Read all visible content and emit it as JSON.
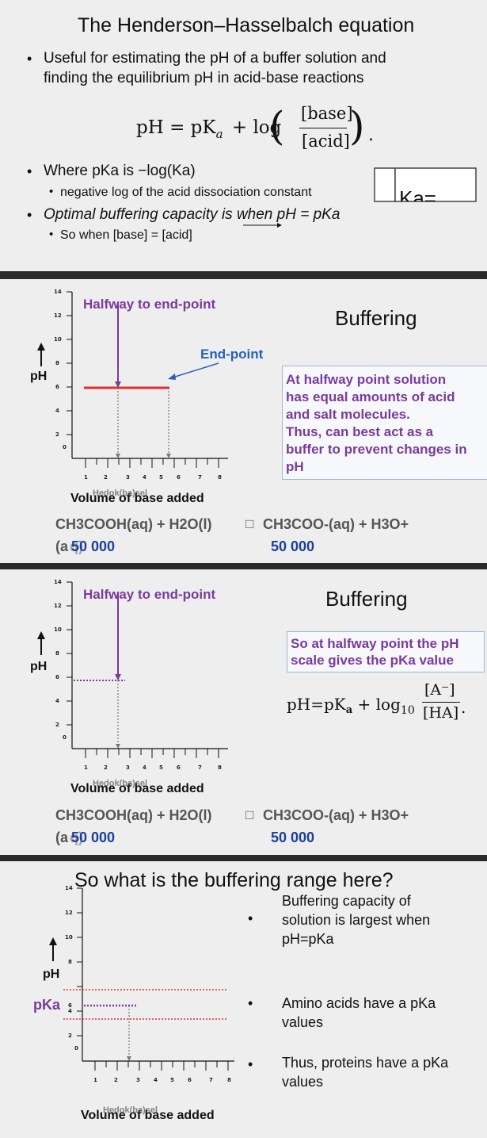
{
  "slide1": {
    "title": "The Henderson–Hasselbalch equation",
    "bullet1_line1": "Useful for estimating the pH of a buffer solution and",
    "bullet1_line2": "finding the equilibrium pH in acid-base reactions",
    "equation": {
      "lhs": "pH = pK",
      "sub": "a",
      "plus_log": "+ log",
      "numerator": "[base]",
      "denominator": "[acid]",
      "end": "."
    },
    "bullet2": "Where pKa is  −log(Ka)",
    "sub2": "negative log of the acid dissociation constant",
    "bullet3": "Optimal buffering capacity is when pH = pKa",
    "sub3": "So when [base] = [acid]",
    "corner_fragment": "Ka="
  },
  "slide2": {
    "title": "Buffering",
    "label_halfway": "Halfway to end-point",
    "label_endpoint": "End-point",
    "y_label": "pH",
    "y_ticks": [
      "14",
      "12",
      "10",
      "8",
      "6",
      "4",
      "2",
      "0"
    ],
    "x_ticks": [
      "1",
      "2",
      "3",
      "4",
      "5",
      "6",
      "7",
      "8"
    ],
    "x_label": "Volume of base added",
    "x_label_overlap": "Hedok(ba)sel",
    "box_text": [
      "At halfway point solution",
      "has equal amounts of acid",
      "and salt molecules.",
      "Thus, can best act as a",
      "buffer to prevent changes in",
      "pH"
    ],
    "reaction_left": "CH3COOH(aq) + H2O(l)",
    "reaction_glyph": "□",
    "reaction_right": "CH3COO-(aq) + H3O+",
    "under_left_prefix": "(a",
    "under_left_overlap": "q)",
    "under_left_value": "50 000",
    "under_right_value": "50 000"
  },
  "slide3": {
    "title": "Buffering",
    "label_halfway": "Halfway to end-point",
    "y_label": "pH",
    "y_ticks": [
      "14",
      "12",
      "10",
      "8",
      "6",
      "4",
      "2",
      "0"
    ],
    "x_ticks": [
      "1",
      "2",
      "3",
      "4",
      "5",
      "6",
      "7",
      "8"
    ],
    "x_label": "Volume of base added",
    "x_label_overlap": "Hedok(ba)sel",
    "box_text": [
      "So at halfway point the pH",
      "scale gives the pKa value"
    ],
    "equation": {
      "lhs": "pH=pK",
      "sub": "a",
      "log": "+ log",
      "log_sub": "10",
      "numerator": "[A⁻]",
      "denominator": "[HA]",
      "end": "."
    },
    "reaction_left": "CH3COOH(aq) + H2O(l)",
    "reaction_glyph": "□",
    "reaction_right": "CH3COO-(aq) + H3O+",
    "under_left_prefix": "(a",
    "under_left_overlap": "q)",
    "under_left_value": "50 000",
    "under_right_value": "50 000"
  },
  "slide4": {
    "title": "So what is the buffering range here?",
    "y_label": "pH",
    "pka_label": "pKa",
    "y_ticks": [
      "14",
      "12",
      "10",
      "8",
      "6",
      "4",
      "2",
      "0"
    ],
    "x_ticks": [
      "1",
      "2",
      "3",
      "4",
      "5",
      "6",
      "7",
      "8"
    ],
    "x_label": "Volume of base added",
    "x_label_overlap": "Hedok(ba)sel",
    "bullets": [
      [
        "Buffering capacity of",
        "solution is largest when",
        "pH=pKa"
      ],
      [
        "Amino acids have a pKa",
        "values"
      ],
      [
        "Thus, proteins have a pKa",
        "values"
      ]
    ]
  },
  "colors": {
    "purple": "#7a3a9e",
    "red": "#e03030",
    "blue": "#2a5fb8",
    "slide_bg": "#eeeeee",
    "separator": "#2a2a2a"
  }
}
